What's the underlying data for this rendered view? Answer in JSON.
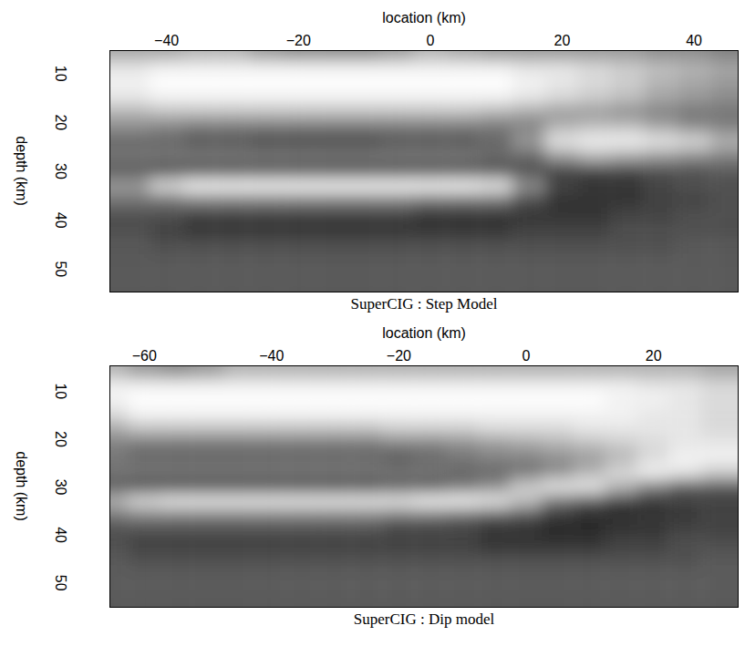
{
  "chart_data": [
    {
      "type": "heatmap",
      "title": "SuperCIG : Step Model",
      "x_label": "location (km)",
      "y_label": "depth (km)",
      "xlim": [
        -48.6,
        46.7
      ],
      "ylim": [
        5.3,
        54.7
      ],
      "xticks": [
        -40,
        -20,
        0,
        20,
        40
      ],
      "yticks": [
        10,
        20,
        30,
        40,
        50
      ],
      "value_range": [
        0,
        1
      ],
      "x": [
        -45,
        -40,
        -35,
        -30,
        -25,
        -20,
        -15,
        -10,
        -5,
        0,
        5,
        10,
        15,
        20,
        25,
        30,
        35,
        40,
        45
      ],
      "y": [
        6,
        9,
        12,
        15,
        18,
        21,
        24,
        27,
        30,
        33,
        36,
        39,
        42,
        45,
        48,
        51,
        54
      ],
      "values": [
        [
          0.65,
          0.9,
          0.95,
          0.9,
          0.7,
          0.55,
          0.4,
          0.45,
          0.35,
          0.6,
          0.45,
          0.3,
          0.3,
          0.35,
          0.35,
          0.35,
          0.35
        ],
        [
          0.65,
          0.95,
          1,
          0.95,
          0.75,
          0.5,
          0.4,
          0.45,
          0.3,
          0.85,
          0.45,
          0.3,
          0.25,
          0.3,
          0.35,
          0.35,
          0.35
        ],
        [
          0.7,
          0.95,
          1,
          0.95,
          0.75,
          0.45,
          0.35,
          0.45,
          0.3,
          0.95,
          0.5,
          0.25,
          0.2,
          0.3,
          0.35,
          0.35,
          0.35
        ],
        [
          0.7,
          0.95,
          1,
          0.95,
          0.75,
          0.45,
          0.35,
          0.45,
          0.3,
          0.95,
          0.5,
          0.25,
          0.2,
          0.3,
          0.35,
          0.35,
          0.35
        ],
        [
          0.6,
          0.95,
          1,
          0.95,
          0.75,
          0.45,
          0.3,
          0.45,
          0.3,
          0.95,
          0.5,
          0.25,
          0.2,
          0.3,
          0.35,
          0.35,
          0.35
        ],
        [
          0.55,
          0.95,
          1,
          0.95,
          0.75,
          0.45,
          0.3,
          0.45,
          0.3,
          0.95,
          0.5,
          0.25,
          0.2,
          0.3,
          0.35,
          0.35,
          0.35
        ],
        [
          0.55,
          0.95,
          1,
          0.95,
          0.75,
          0.45,
          0.3,
          0.45,
          0.3,
          0.95,
          0.5,
          0.25,
          0.2,
          0.3,
          0.35,
          0.35,
          0.35
        ],
        [
          0.55,
          0.95,
          1,
          0.95,
          0.75,
          0.45,
          0.3,
          0.45,
          0.3,
          0.95,
          0.5,
          0.25,
          0.2,
          0.3,
          0.35,
          0.35,
          0.35
        ],
        [
          0.6,
          0.95,
          1,
          0.95,
          0.75,
          0.45,
          0.35,
          0.45,
          0.3,
          0.95,
          0.5,
          0.25,
          0.2,
          0.3,
          0.35,
          0.35,
          0.35
        ],
        [
          0.7,
          0.95,
          1,
          0.95,
          0.75,
          0.45,
          0.35,
          0.45,
          0.3,
          0.95,
          0.45,
          0.2,
          0.2,
          0.3,
          0.35,
          0.35,
          0.35
        ],
        [
          0.65,
          0.95,
          1,
          0.95,
          0.75,
          0.45,
          0.35,
          0.45,
          0.3,
          0.95,
          0.45,
          0.2,
          0.2,
          0.3,
          0.35,
          0.35,
          0.35
        ],
        [
          0.6,
          0.95,
          1,
          0.95,
          0.7,
          0.45,
          0.4,
          0.4,
          0.3,
          0.9,
          0.45,
          0.2,
          0.2,
          0.3,
          0.35,
          0.35,
          0.35
        ],
        [
          0.6,
          0.9,
          0.95,
          0.9,
          0.65,
          0.5,
          0.6,
          0.4,
          0.3,
          0.55,
          0.3,
          0.2,
          0.25,
          0.3,
          0.35,
          0.35,
          0.35
        ],
        [
          0.6,
          0.9,
          0.9,
          0.85,
          0.6,
          0.7,
          0.9,
          0.6,
          0.25,
          0.25,
          0.2,
          0.2,
          0.25,
          0.3,
          0.35,
          0.35,
          0.35
        ],
        [
          0.6,
          0.85,
          0.85,
          0.8,
          0.6,
          0.75,
          0.95,
          0.7,
          0.25,
          0.2,
          0.2,
          0.2,
          0.25,
          0.3,
          0.35,
          0.35,
          0.35
        ],
        [
          0.6,
          0.8,
          0.8,
          0.75,
          0.55,
          0.75,
          0.95,
          0.65,
          0.25,
          0.2,
          0.2,
          0.25,
          0.3,
          0.3,
          0.35,
          0.35,
          0.35
        ],
        [
          0.55,
          0.75,
          0.7,
          0.65,
          0.5,
          0.65,
          0.9,
          0.6,
          0.3,
          0.25,
          0.25,
          0.25,
          0.3,
          0.3,
          0.35,
          0.35,
          0.35
        ],
        [
          0.55,
          0.7,
          0.65,
          0.6,
          0.45,
          0.55,
          0.85,
          0.55,
          0.3,
          0.3,
          0.25,
          0.3,
          0.3,
          0.35,
          0.35,
          0.35,
          0.35
        ],
        [
          0.5,
          0.65,
          0.6,
          0.55,
          0.45,
          0.5,
          0.7,
          0.5,
          0.35,
          0.3,
          0.3,
          0.3,
          0.3,
          0.35,
          0.35,
          0.35,
          0.35
        ]
      ]
    },
    {
      "type": "heatmap",
      "title": "SuperCIG : Dip model",
      "x_label": "location (km)",
      "y_label": "depth (km)",
      "xlim": [
        -65.4,
        33.3
      ],
      "ylim": [
        4.7,
        55.1
      ],
      "xticks": [
        -60,
        -40,
        -20,
        0,
        20
      ],
      "yticks": [
        10,
        20,
        30,
        40,
        50
      ],
      "value_range": [
        0,
        1
      ],
      "x": [
        -65,
        -60,
        -55,
        -50,
        -45,
        -40,
        -35,
        -30,
        -25,
        -20,
        -15,
        -10,
        -5,
        0,
        5,
        10,
        15,
        20,
        25,
        30
      ],
      "y": [
        6,
        9,
        12,
        15,
        18,
        21,
        24,
        27,
        30,
        33,
        36,
        39,
        42,
        45,
        48,
        51,
        54
      ],
      "values": [
        [
          0.7,
          0.95,
          0.95,
          0.85,
          0.65,
          0.5,
          0.45,
          0.45,
          0.35,
          0.7,
          0.45,
          0.3,
          0.3,
          0.35,
          0.35,
          0.35,
          0.35
        ],
        [
          0.6,
          0.95,
          1,
          0.95,
          0.75,
          0.45,
          0.4,
          0.45,
          0.3,
          0.85,
          0.5,
          0.3,
          0.25,
          0.3,
          0.35,
          0.35,
          0.35
        ],
        [
          0.55,
          0.95,
          1,
          0.95,
          0.75,
          0.45,
          0.4,
          0.45,
          0.3,
          0.9,
          0.5,
          0.3,
          0.25,
          0.3,
          0.35,
          0.35,
          0.35
        ],
        [
          0.6,
          0.95,
          1,
          0.95,
          0.75,
          0.45,
          0.4,
          0.45,
          0.3,
          0.9,
          0.5,
          0.3,
          0.25,
          0.3,
          0.35,
          0.35,
          0.35
        ],
        [
          0.7,
          0.95,
          1,
          0.95,
          0.75,
          0.45,
          0.4,
          0.45,
          0.3,
          0.9,
          0.5,
          0.3,
          0.25,
          0.3,
          0.35,
          0.35,
          0.35
        ],
        [
          0.7,
          0.95,
          1,
          0.95,
          0.75,
          0.45,
          0.4,
          0.45,
          0.3,
          0.9,
          0.5,
          0.3,
          0.25,
          0.3,
          0.35,
          0.35,
          0.35
        ],
        [
          0.7,
          0.95,
          1,
          0.95,
          0.75,
          0.45,
          0.4,
          0.45,
          0.3,
          0.9,
          0.5,
          0.3,
          0.25,
          0.3,
          0.35,
          0.35,
          0.35
        ],
        [
          0.7,
          0.95,
          1,
          0.95,
          0.75,
          0.45,
          0.4,
          0.45,
          0.3,
          0.9,
          0.5,
          0.3,
          0.25,
          0.3,
          0.35,
          0.35,
          0.35
        ],
        [
          0.7,
          0.95,
          1,
          0.95,
          0.75,
          0.45,
          0.4,
          0.45,
          0.3,
          0.9,
          0.5,
          0.3,
          0.25,
          0.3,
          0.35,
          0.35,
          0.35
        ],
        [
          0.7,
          0.95,
          1,
          0.95,
          0.8,
          0.5,
          0.35,
          0.45,
          0.35,
          0.9,
          0.45,
          0.25,
          0.25,
          0.3,
          0.35,
          0.35,
          0.35
        ],
        [
          0.7,
          0.95,
          1,
          0.95,
          0.8,
          0.5,
          0.4,
          0.45,
          0.35,
          0.95,
          0.45,
          0.25,
          0.25,
          0.3,
          0.35,
          0.35,
          0.35
        ],
        [
          0.7,
          0.95,
          1,
          0.95,
          0.8,
          0.55,
          0.45,
          0.4,
          0.45,
          0.95,
          0.4,
          0.25,
          0.25,
          0.3,
          0.35,
          0.35,
          0.35
        ],
        [
          0.7,
          0.95,
          1,
          0.95,
          0.85,
          0.6,
          0.5,
          0.4,
          0.55,
          0.9,
          0.35,
          0.2,
          0.2,
          0.3,
          0.35,
          0.35,
          0.35
        ],
        [
          0.7,
          0.95,
          1,
          0.95,
          0.85,
          0.65,
          0.5,
          0.45,
          0.8,
          0.75,
          0.3,
          0.2,
          0.2,
          0.3,
          0.35,
          0.35,
          0.35
        ],
        [
          0.7,
          0.95,
          1,
          0.95,
          0.85,
          0.7,
          0.55,
          0.55,
          0.9,
          0.45,
          0.2,
          0.15,
          0.2,
          0.3,
          0.35,
          0.35,
          0.35
        ],
        [
          0.7,
          0.95,
          1,
          0.95,
          0.9,
          0.75,
          0.6,
          0.7,
          0.9,
          0.35,
          0.15,
          0.15,
          0.2,
          0.3,
          0.35,
          0.35,
          0.35
        ],
        [
          0.7,
          0.95,
          0.95,
          0.95,
          0.9,
          0.8,
          0.7,
          0.85,
          0.7,
          0.25,
          0.15,
          0.2,
          0.25,
          0.3,
          0.35,
          0.35,
          0.35
        ],
        [
          0.7,
          0.9,
          0.95,
          0.9,
          0.9,
          0.85,
          0.85,
          0.95,
          0.5,
          0.2,
          0.2,
          0.2,
          0.25,
          0.3,
          0.35,
          0.35,
          0.35
        ],
        [
          0.7,
          0.9,
          0.9,
          0.9,
          0.9,
          0.9,
          0.95,
          0.9,
          0.35,
          0.25,
          0.2,
          0.25,
          0.3,
          0.3,
          0.35,
          0.35,
          0.35
        ],
        [
          0.65,
          0.85,
          0.85,
          0.85,
          0.85,
          0.9,
          0.95,
          0.8,
          0.35,
          0.25,
          0.25,
          0.25,
          0.3,
          0.35,
          0.35,
          0.35,
          0.35
        ]
      ]
    }
  ]
}
